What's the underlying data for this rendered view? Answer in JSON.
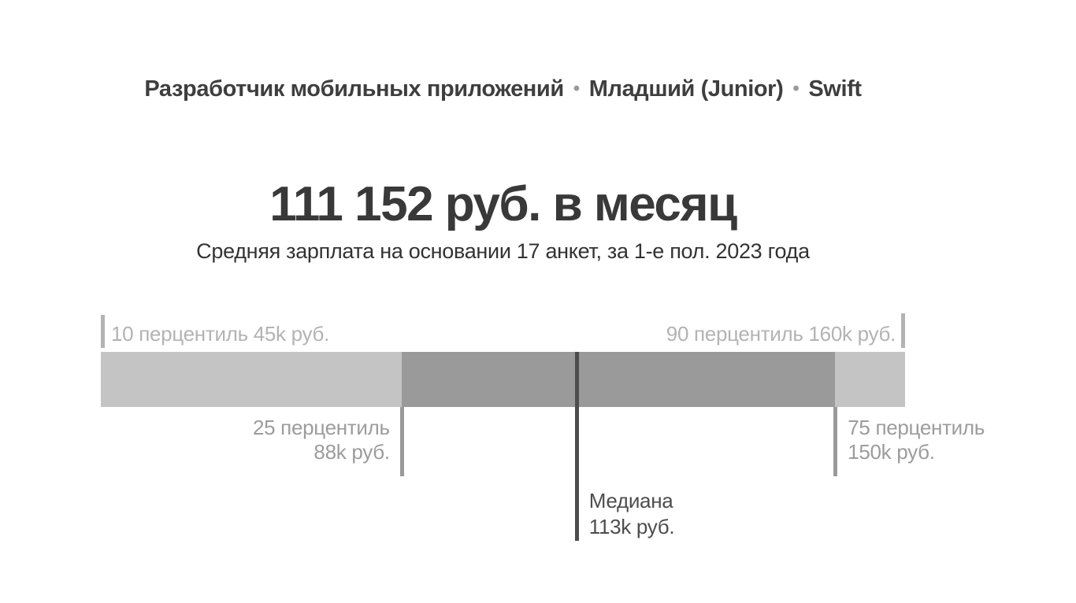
{
  "header": {
    "profession": "Разработчик мобильных приложений",
    "separator": "•",
    "level": "Младший (Junior)",
    "language": "Swift"
  },
  "salary": {
    "headline": "111 152 руб. в месяц",
    "subtitle": "Средняя зарплата на основании 17 анкет, за 1-е пол. 2023 года"
  },
  "chart_data": {
    "type": "percentile_range_bar",
    "title": "111 152 руб. в месяц",
    "subtitle": "Средняя зарплата на основании 17 анкет, за 1-е пол. 2023 года",
    "unit": "k руб.",
    "axis_min": 45,
    "axis_max": 160,
    "p10": {
      "value": 45,
      "label": "10 перцентиль 45k руб."
    },
    "p25": {
      "value": 88,
      "label_line1": "25 перцентиль",
      "label_line2": "88k руб."
    },
    "median": {
      "value": 113,
      "label_line1": "Медиана",
      "label_line2": "113k руб."
    },
    "p75": {
      "value": 150,
      "label_line1": "75 перцентиль",
      "label_line2": "150k руб."
    },
    "p90": {
      "value": 160,
      "label": "90 перцентиль 160k руб."
    },
    "legend_position": "none",
    "grid": false,
    "colors": {
      "bar_light": "#c4c4c4",
      "bar_dark": "#9a9a9a",
      "median_line": "#4d4d4d",
      "marker_line": "#9a9a9a",
      "tick": "#b3b3b3",
      "top_label_text": "#b3b3b3",
      "side_label_text": "#9c9c9c",
      "median_label_text": "#4d4d4d",
      "title_text": "#3e3e3e",
      "headline_text": "#393939",
      "subtitle_text": "#333333"
    }
  }
}
